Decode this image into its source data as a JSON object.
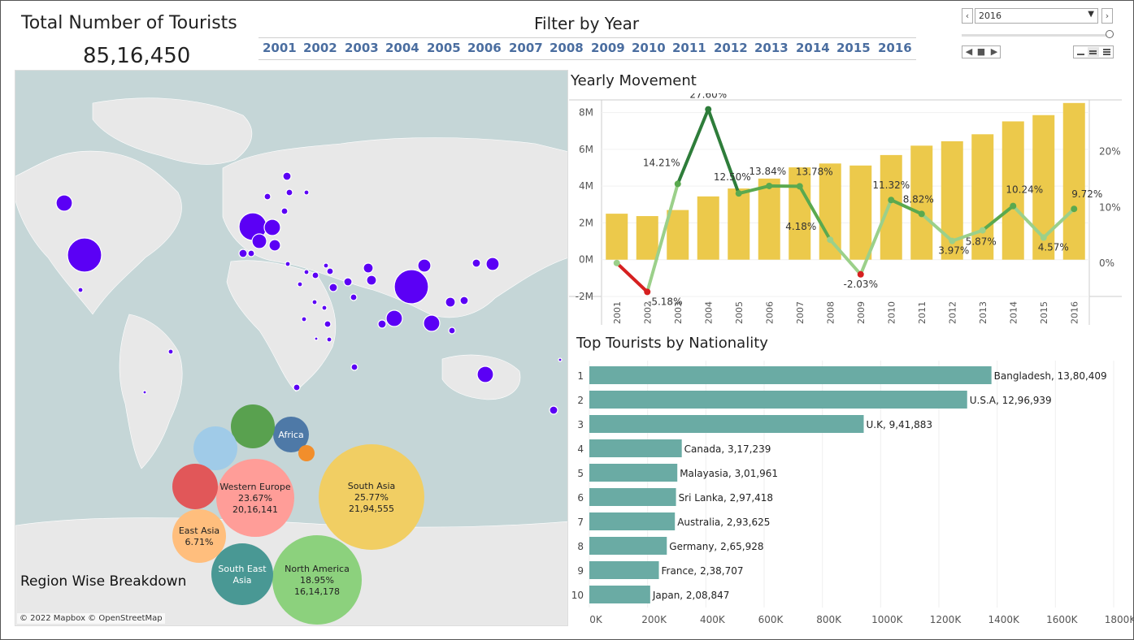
{
  "header": {
    "total_title": "Total Number of Tourists",
    "total_value": "85,16,450",
    "filter_title": "Filter by Year",
    "years": [
      "2001",
      "2002",
      "2003",
      "2004",
      "2005",
      "2006",
      "2007",
      "2008",
      "2009",
      "2010",
      "2011",
      "2012",
      "2013",
      "2014",
      "2015",
      "2016"
    ],
    "selected_year": "2016"
  },
  "controls": {
    "prev_icon": "chevron-left-icon",
    "next_icon": "chevron-right-icon",
    "play_icon": "play-icon",
    "stop_icon": "stop-icon",
    "back_icon": "step-back-icon",
    "speed_icons": [
      "slow-speed-icon",
      "medium-speed-icon",
      "fast-speed-icon"
    ]
  },
  "map": {
    "credit": "© 2022 Mapbox © OpenStreetMap",
    "region_title": "Region Wise Breakdown",
    "point_color": "#5b00f5",
    "regions": [
      {
        "name": "Western Europe",
        "pct": "23.67%",
        "value": "20,16,141",
        "color": "#ff9d98"
      },
      {
        "name": "South Asia",
        "pct": "25.77%",
        "value": "21,94,555",
        "color": "#f1ce63"
      },
      {
        "name": "North America",
        "pct": "18.95%",
        "value": "16,14,178",
        "color": "#8cd17d"
      },
      {
        "name": "South East Asia",
        "pct": "",
        "value": "",
        "color": "#499894"
      },
      {
        "name": "East Asia",
        "pct": "6.71%",
        "value": "",
        "color": "#ffbe7d"
      },
      {
        "name": "Africa",
        "pct": "",
        "value": "",
        "color": "#4e79a7"
      },
      {
        "name": "",
        "pct": "",
        "value": "",
        "color": "#59a14f"
      },
      {
        "name": "",
        "pct": "",
        "value": "",
        "color": "#a0cbe8"
      },
      {
        "name": "",
        "pct": "",
        "value": "",
        "color": "#e15759"
      },
      {
        "name": "",
        "pct": "",
        "value": "",
        "color": "#f28e2b"
      }
    ]
  },
  "yearly": {
    "title": "Yearly Movement",
    "bar_color": "#ecc94b",
    "y_ticks": [
      "8M",
      "6M",
      "4M",
      "2M",
      "0M",
      "-2M"
    ],
    "y2_ticks": [
      "20%",
      "10%",
      "0%"
    ]
  },
  "nationality": {
    "title": "Top Tourists by Nationality",
    "bar_color": "#6aaba4",
    "x_ticks": [
      "0K",
      "200K",
      "400K",
      "600K",
      "800K",
      "1000K",
      "1200K",
      "1400K",
      "1600K",
      "1800K"
    ]
  },
  "chart_data": [
    {
      "type": "bar",
      "title": "Yearly Movement",
      "categories": [
        "2001",
        "2002",
        "2003",
        "2004",
        "2005",
        "2006",
        "2007",
        "2008",
        "2009",
        "2010",
        "2011",
        "2012",
        "2013",
        "2014",
        "2015",
        "2016"
      ],
      "series": [
        {
          "values": [
            2.5,
            2.37,
            2.7,
            3.44,
            3.87,
            4.41,
            5.02,
            5.23,
            5.12,
            5.69,
            6.2,
            6.44,
            6.82,
            7.52,
            7.86,
            8.52
          ]
        },
        {
          "values": [
            0.0,
            -5.18,
            14.21,
            27.6,
            12.5,
            13.84,
            13.78,
            4.18,
            -2.03,
            11.32,
            8.82,
            3.97,
            5.87,
            10.24,
            4.57,
            9.72
          ]
        }
      ],
      "labels": [
        "",
        "-5.18%",
        "14.21%",
        "27.60%",
        "12.50%",
        "13.84%",
        "13.78%",
        "4.18%",
        "-2.03%",
        "11.32%",
        "8.82%",
        "3.97%",
        "5.87%",
        "10.24%",
        "4.57%",
        "9.72%"
      ],
      "ylim": [
        -2,
        8.6
      ],
      "y2lim": [
        -6,
        29
      ]
    },
    {
      "type": "bar",
      "title": "Top Tourists by Nationality",
      "categories": [
        "Bangladesh",
        "U.S.A",
        "U.K",
        "Canada",
        "Malayasia",
        "Sri Lanka",
        "Australia",
        "Germany",
        "France",
        "Japan"
      ],
      "ranks": [
        "1",
        "2",
        "3",
        "4",
        "5",
        "6",
        "7",
        "8",
        "9",
        "10"
      ],
      "values": [
        1380409,
        1296939,
        941883,
        317239,
        301961,
        297418,
        293625,
        265928,
        238707,
        208847
      ],
      "labels": [
        "Bangladesh, 13,80,409",
        "U.S.A, 12,96,939",
        "U.K, 9,41,883",
        "Canada, 3,17,239",
        "Malayasia, 3,01,961",
        "Sri Lanka, 2,97,418",
        "Australia, 2,93,625",
        "Germany, 2,65,928",
        "France, 2,38,707",
        "Japan, 2,08,847"
      ],
      "xlim": [
        0,
        1800000
      ]
    }
  ]
}
